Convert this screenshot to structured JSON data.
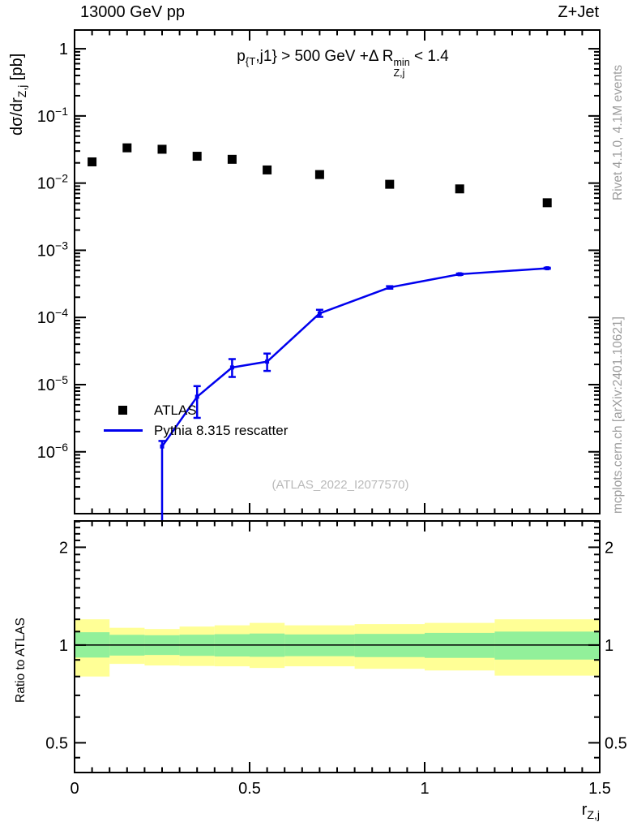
{
  "header": {
    "left_title": "13000 GeV pp",
    "right_title": "Z+Jet"
  },
  "side_notes": {
    "rivet": "Rivet 4.1.0,  4.1M events",
    "mcplots": "mcplots.cern.ch [arXiv:2401.10621]"
  },
  "watermark": "(ATLAS_2022_I2077570)",
  "cut_label": {
    "p": "p",
    "p_sub": "{T",
    "mid": ",j1} > 500 GeV +",
    "delta": "Δ",
    "r": " R",
    "r_sup": "min",
    "r_sub": "Z,j",
    "tail": " < 1.4"
  },
  "axis_labels": {
    "y_main_prefix": "dσ/dr",
    "y_main_sub": "Z,j",
    "y_main_suffix": " [pb]",
    "y_ratio": "Ratio to ATLAS",
    "x_prefix": "r",
    "x_sub": "Z,j"
  },
  "legend": {
    "items": [
      {
        "label": "ATLAS",
        "marker": "black-filled-square"
      },
      {
        "label": "Pythia 8.315 rescatter",
        "marker": "blue-line"
      }
    ]
  },
  "colors": {
    "atlas_black": "#000000",
    "pythia_blue": "#0000ee",
    "band_yellow": "#ffff96",
    "band_green": "#92f09a",
    "gray_text": "#9c9c9c",
    "watermark_gray": "#b9b9b9"
  },
  "chart_data": [
    {
      "id": "main-panel",
      "type": "scatter",
      "title": "p_{T,j1} > 500 GeV + ΔR^min_{Z,j} < 1.4",
      "xlabel": "r_{Z,j}",
      "ylabel": "dσ/dr_{Z,j} [pb]",
      "yscale": "log",
      "xlim": [
        0,
        1.5
      ],
      "ylim": [
        1.2e-07,
        1.9
      ],
      "ytick_exponents": [
        0,
        -1,
        -2,
        -3,
        -4,
        -5,
        -6
      ],
      "xticks": [
        0,
        0.5,
        1,
        1.5
      ],
      "xtick_labels": [
        "0",
        "0.5",
        "1",
        "1.5"
      ],
      "series": [
        {
          "name": "ATLAS",
          "type": "scatter",
          "marker": "filled_square",
          "color": "#000000",
          "x": [
            0.05,
            0.15,
            0.25,
            0.35,
            0.45,
            0.55,
            0.7,
            0.9,
            1.1,
            1.35
          ],
          "y": [
            0.0207,
            0.0335,
            0.0319,
            0.0251,
            0.0226,
            0.0157,
            0.0134,
            0.0096,
            0.0082,
            0.0051
          ]
        },
        {
          "name": "Pythia 8.315 rescatter",
          "type": "line",
          "marker": "small_square",
          "color": "#0000ee",
          "x": [
            0.25,
            0.35,
            0.45,
            0.55,
            0.7,
            0.9,
            1.1,
            1.35
          ],
          "y": [
            1.2e-06,
            6.6e-06,
            1.8e-05,
            2.2e-05,
            0.000115,
            0.00028,
            0.00044,
            0.00054
          ],
          "y_lo": [
            1e-08,
            3.2e-06,
            1.3e-05,
            1.6e-05,
            0.000102,
            0.000268,
            0.00043,
            0.00053
          ],
          "y_hi": [
            1.45e-06,
            9.5e-06,
            2.4e-05,
            2.9e-05,
            0.00013,
            0.000292,
            0.00045,
            0.00055
          ]
        }
      ]
    },
    {
      "id": "ratio-panel",
      "type": "band",
      "ylabel": "Ratio to ATLAS",
      "yscale": "log",
      "xlim": [
        0,
        1.5
      ],
      "ylim": [
        0.405,
        2.41
      ],
      "yticks": [
        2,
        1,
        0.5
      ],
      "ytick_labels": [
        "2",
        "1",
        "0.5"
      ],
      "reference_line": 1,
      "bin_edges": [
        0,
        0.1,
        0.2,
        0.3,
        0.4,
        0.5,
        0.6,
        0.8,
        1.0,
        1.2,
        1.5
      ],
      "bands": {
        "yellow": {
          "color": "#ffff96",
          "lo": [
            0.8,
            0.875,
            0.865,
            0.862,
            0.86,
            0.85,
            0.86,
            0.845,
            0.835,
            0.805
          ],
          "hi": [
            1.2,
            1.13,
            1.12,
            1.14,
            1.15,
            1.17,
            1.15,
            1.16,
            1.17,
            1.2
          ]
        },
        "green": {
          "color": "#92f09a",
          "lo": [
            0.915,
            0.928,
            0.932,
            0.926,
            0.922,
            0.92,
            0.924,
            0.918,
            0.913,
            0.902
          ],
          "hi": [
            1.095,
            1.075,
            1.072,
            1.076,
            1.08,
            1.085,
            1.078,
            1.082,
            1.09,
            1.1
          ]
        }
      }
    }
  ]
}
